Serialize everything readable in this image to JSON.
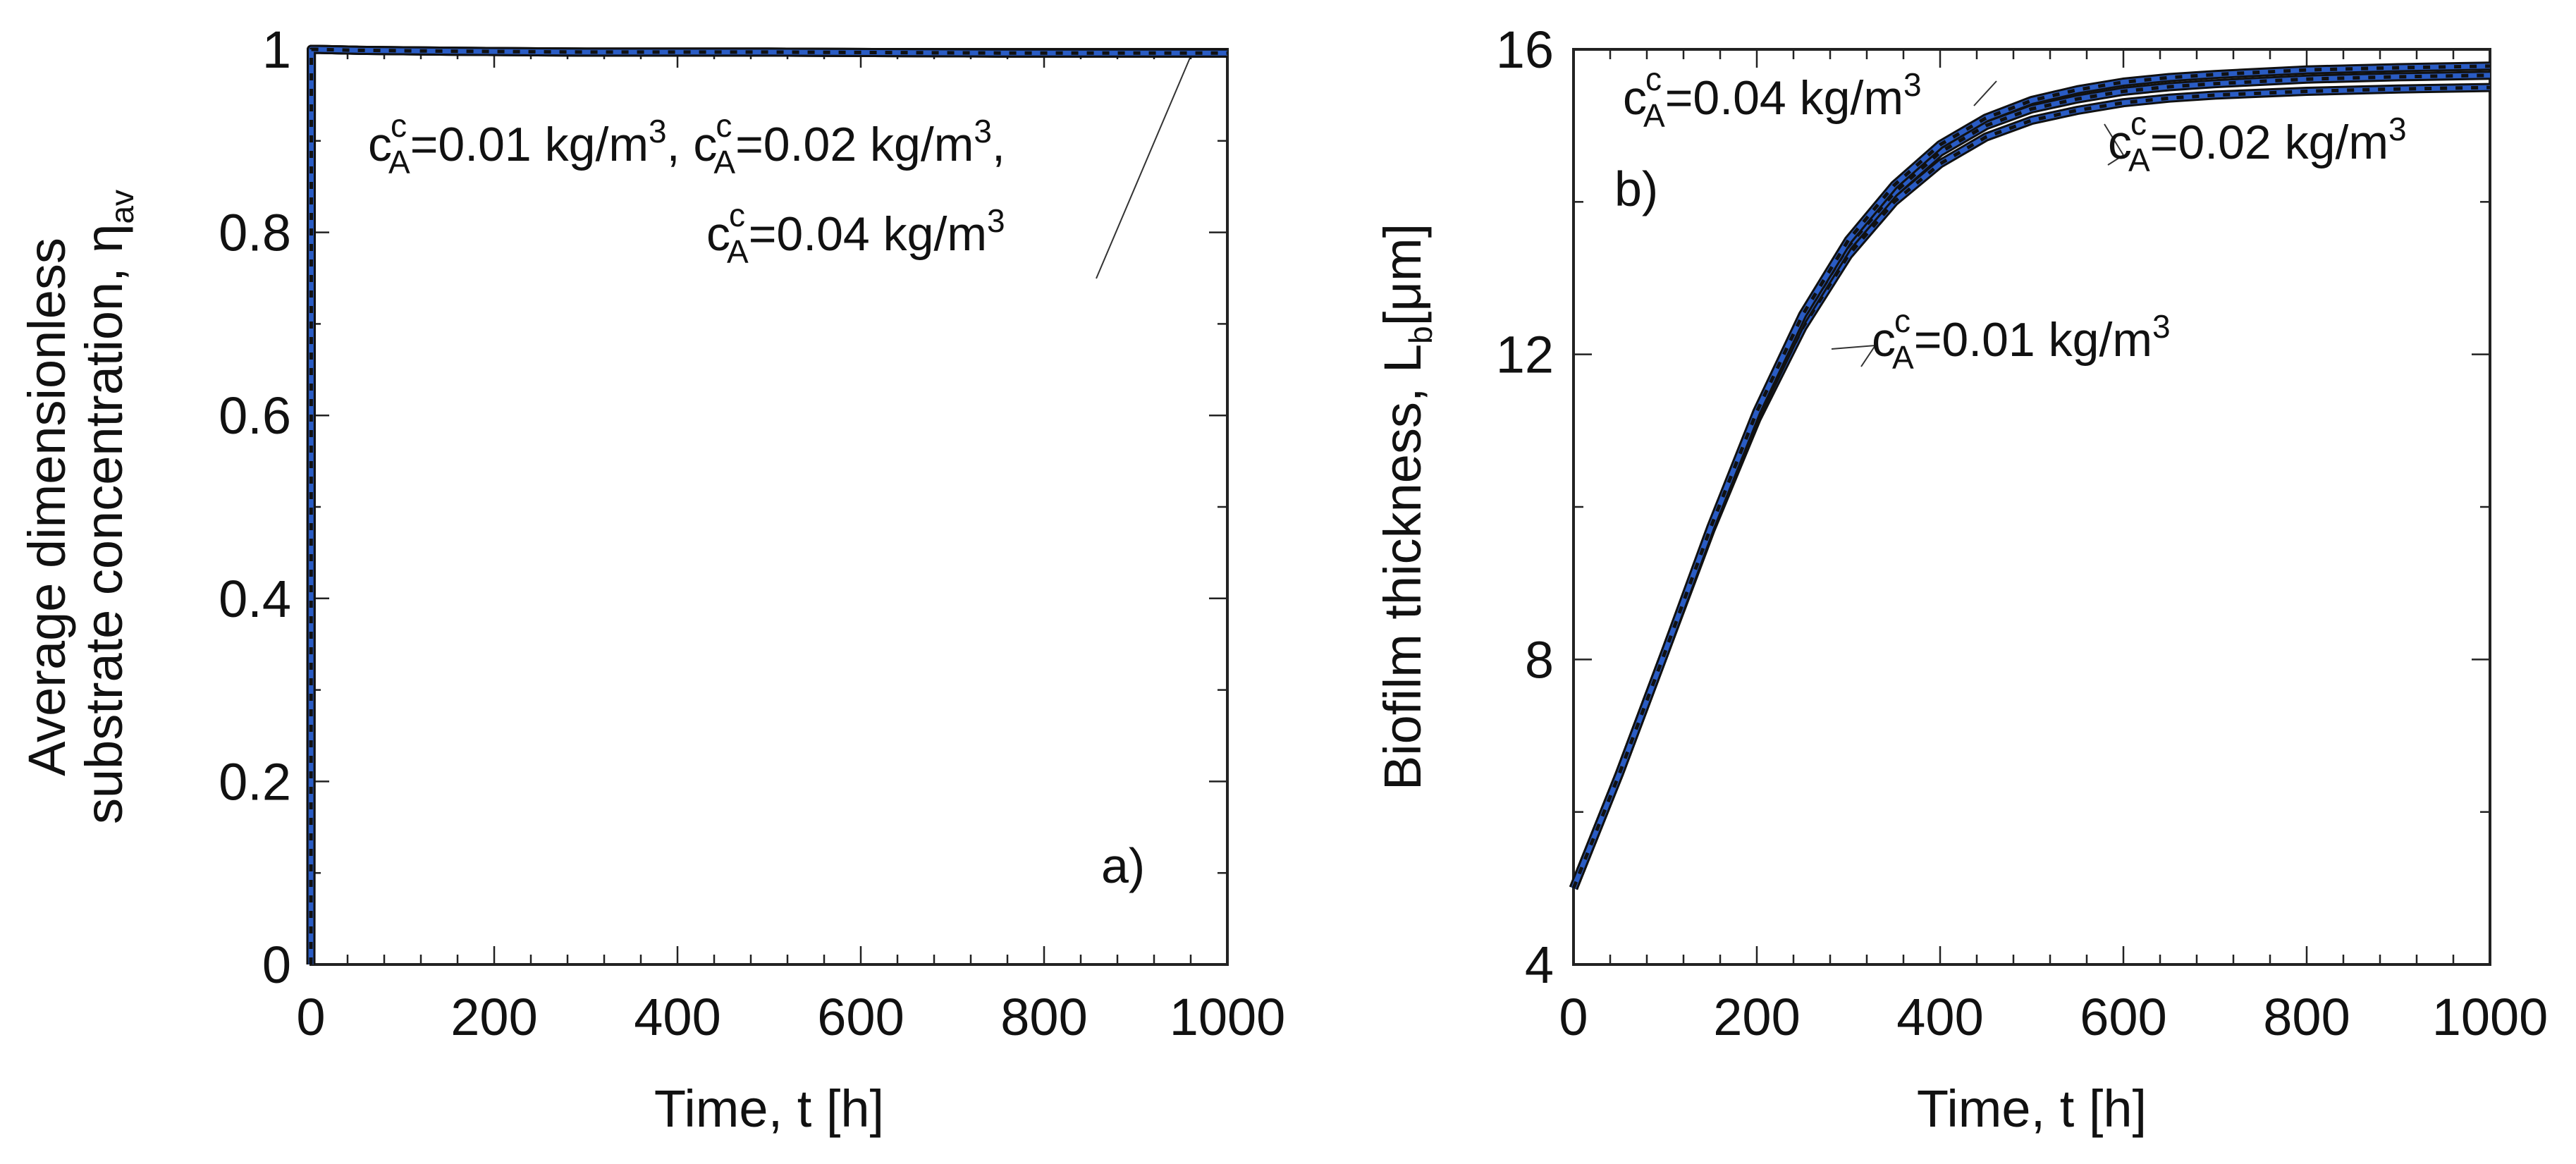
{
  "colors": {
    "series_outline": "#111111",
    "series_blue": "#2a5cc4",
    "series_dash": "#111111",
    "axis": "#222222",
    "leader": "#333333"
  },
  "chart_data": [
    {
      "type": "line",
      "panel_label": "a)",
      "xlabel": "Time, t [h]",
      "ylabel_line1": "Average dimensionless",
      "ylabel_line2": "substrate concentration, ",
      "ylabel_symbol": "η",
      "ylabel_sub": "av",
      "xlim": [
        0,
        1000
      ],
      "ylim": [
        0,
        1
      ],
      "xticks": [
        0,
        200,
        400,
        600,
        800,
        1000
      ],
      "yticks": [
        0,
        0.2,
        0.4,
        0.6,
        0.8,
        1
      ],
      "xtick_labels": [
        "0",
        "200",
        "400",
        "600",
        "800",
        "1000"
      ],
      "ytick_labels": [
        "0",
        "0.2",
        "0.4",
        "0.6",
        "0.8",
        "1"
      ],
      "annotation_line1": [
        {
          "c": "c",
          "sup": "c",
          "sub": "A",
          "rest": "=0.01 kg/m",
          "cube": "3",
          "tail": ", "
        },
        {
          "c": "c",
          "sup": "c",
          "sub": "A",
          "rest": "=0.02 kg/m",
          "cube": "3",
          "tail": ","
        }
      ],
      "annotation_line2": {
        "c": "c",
        "sup": "c",
        "sub": "A",
        "rest": "=0.04 kg/m",
        "cube": "3",
        "tail": ""
      },
      "series": [
        {
          "name": "cA=0.01 kg/m3",
          "x": [
            0,
            0.5,
            5,
            50,
            150,
            300,
            500,
            750,
            1000
          ],
          "y": [
            0,
            1.0,
            1.0,
            0.999,
            0.998,
            0.997,
            0.997,
            0.996,
            0.996
          ]
        },
        {
          "name": "cA=0.02 kg/m3",
          "x": [
            0,
            0.5,
            5,
            50,
            150,
            300,
            500,
            750,
            1000
          ],
          "y": [
            0,
            1.0,
            1.0,
            0.999,
            0.998,
            0.997,
            0.997,
            0.996,
            0.996
          ]
        },
        {
          "name": "cA=0.04 kg/m3",
          "x": [
            0,
            0.5,
            5,
            50,
            150,
            300,
            500,
            750,
            1000
          ],
          "y": [
            0,
            1.0,
            1.0,
            0.999,
            0.998,
            0.997,
            0.997,
            0.996,
            0.996
          ]
        }
      ]
    },
    {
      "type": "line",
      "panel_label": "b)",
      "xlabel": "Time, t [h]",
      "ylabel_text": "Biofilm thickness, L",
      "ylabel_sub": "b",
      "ylabel_unit_open": "[",
      "ylabel_mu": "μ",
      "ylabel_unit_close": "m]",
      "xlim": [
        0,
        1000
      ],
      "ylim": [
        4,
        16
      ],
      "xticks": [
        0,
        200,
        400,
        600,
        800,
        1000
      ],
      "yticks": [
        4,
        8,
        12,
        16
      ],
      "xtick_labels": [
        "0",
        "200",
        "400",
        "600",
        "800",
        "1000"
      ],
      "ytick_labels": [
        "4",
        "8",
        "12",
        "16"
      ],
      "annotations": [
        {
          "c": "c",
          "sup": "c",
          "sub": "A",
          "rest": "=0.04 kg/m",
          "cube": "3"
        },
        {
          "c": "c",
          "sup": "c",
          "sub": "A",
          "rest": "=0.02 kg/m",
          "cube": "3"
        },
        {
          "c": "c",
          "sup": "c",
          "sub": "A",
          "rest": "=0.01 kg/m",
          "cube": "3"
        }
      ],
      "series": [
        {
          "name": "cA=0.01 kg/m3",
          "x": [
            0,
            50,
            100,
            150,
            200,
            250,
            300,
            350,
            400,
            450,
            500,
            550,
            600,
            650,
            700,
            800,
            900,
            1000
          ],
          "y": [
            5.0,
            6.5,
            8.1,
            9.7,
            11.15,
            12.35,
            13.3,
            14.0,
            14.5,
            14.85,
            15.07,
            15.2,
            15.3,
            15.36,
            15.4,
            15.45,
            15.48,
            15.5
          ]
        },
        {
          "name": "cA=0.02 kg/m3",
          "x": [
            0,
            50,
            100,
            150,
            200,
            250,
            300,
            350,
            400,
            450,
            500,
            550,
            600,
            650,
            700,
            800,
            900,
            1000
          ],
          "y": [
            5.0,
            6.5,
            8.1,
            9.72,
            11.2,
            12.45,
            13.42,
            14.12,
            14.65,
            15.0,
            15.22,
            15.35,
            15.45,
            15.51,
            15.55,
            15.61,
            15.64,
            15.66
          ]
        },
        {
          "name": "cA=0.04 kg/m3",
          "x": [
            0,
            50,
            100,
            150,
            200,
            250,
            300,
            350,
            400,
            450,
            500,
            550,
            600,
            650,
            700,
            800,
            900,
            1000
          ],
          "y": [
            5.0,
            6.5,
            8.1,
            9.74,
            11.25,
            12.52,
            13.5,
            14.22,
            14.75,
            15.1,
            15.33,
            15.47,
            15.57,
            15.63,
            15.67,
            15.73,
            15.76,
            15.78
          ]
        }
      ]
    }
  ]
}
